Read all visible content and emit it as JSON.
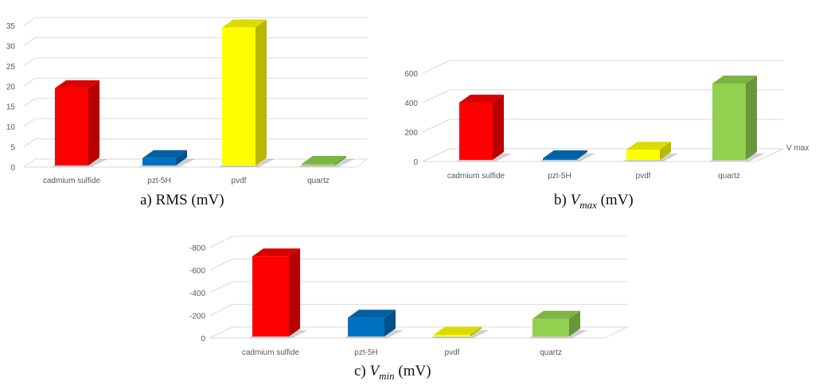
{
  "chart_data": [
    {
      "type": "bar",
      "title": "",
      "caption": {
        "prefix": "a) ",
        "main": "RMS",
        "sub": "",
        "unit": " (mV)"
      },
      "categories": [
        "cadmium sulfide",
        "pzt-5H",
        "pvdf",
        "quartz"
      ],
      "values": [
        19.5,
        2.2,
        34.5,
        0.4
      ],
      "colors": [
        "#ff0000",
        "#0070c0",
        "#ffff00",
        "#92d050"
      ],
      "yticks": [
        "0",
        "5",
        "10",
        "15",
        "20",
        "25",
        "30",
        "35"
      ],
      "ylim": [
        0,
        35
      ],
      "series_label": "",
      "grid": true
    },
    {
      "type": "bar",
      "title": "",
      "caption": {
        "prefix": "b) ",
        "main": "V",
        "sub": "max",
        "unit": " (mV)"
      },
      "categories": [
        "cadmium sulfide",
        "pzt-5H",
        "pvdf",
        "quartz"
      ],
      "values": [
        400,
        20,
        80,
        530
      ],
      "colors": [
        "#ff0000",
        "#0070c0",
        "#ffff00",
        "#92d050"
      ],
      "yticks": [
        "0",
        "200",
        "400",
        "600"
      ],
      "ylim": [
        0,
        600
      ],
      "series_label": "V max",
      "grid": true
    },
    {
      "type": "bar",
      "title": "",
      "caption": {
        "prefix": "c) ",
        "main": "V",
        "sub": "min",
        "unit": " (mV)"
      },
      "categories": [
        "cadmium sulfide",
        "pzt-5H",
        "pvdf",
        "quartz"
      ],
      "values": [
        -720,
        -180,
        -30,
        -170
      ],
      "colors": [
        "#ff0000",
        "#0070c0",
        "#ffff00",
        "#92d050"
      ],
      "yticks": [
        "0",
        "-200",
        "-400",
        "-600",
        "-800"
      ],
      "ylim": [
        0,
        -800
      ],
      "series_label": "",
      "grid": true
    }
  ]
}
